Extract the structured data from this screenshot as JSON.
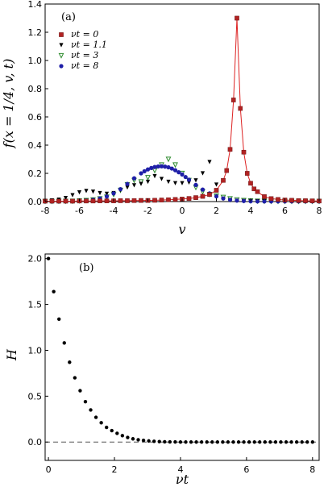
{
  "chart_data": [
    {
      "type": "scatter",
      "panel_label": "(a)",
      "xlabel": "v",
      "ylabel": "f(x = 1/4, v, t)",
      "xlim": [
        -8,
        8
      ],
      "ylim": [
        0,
        1.4
      ],
      "xticks": [
        "-8",
        "-6",
        "-4",
        "-2",
        "0",
        "2",
        "4",
        "6",
        "8"
      ],
      "yticks": [
        "0.0",
        "0.2",
        "0.4",
        "0.6",
        "0.8",
        "1.0",
        "1.2",
        "1.4"
      ],
      "legend_position": "top-left",
      "series": [
        {
          "name": "νt = 0",
          "marker": "square",
          "color": "#b22222",
          "line_color": "#dd2222",
          "x": [
            -8,
            -7.6,
            -7.2,
            -6.8,
            -6.4,
            -6,
            -5.6,
            -5.2,
            -4.8,
            -4.4,
            -4,
            -3.6,
            -3.2,
            -2.8,
            -2.4,
            -2,
            -1.6,
            -1.2,
            -0.8,
            -0.4,
            0,
            0.4,
            0.8,
            1.2,
            1.6,
            2,
            2.4,
            2.6,
            2.8,
            3,
            3.2,
            3.4,
            3.6,
            3.8,
            4,
            4.2,
            4.4,
            4.8,
            5.2,
            5.6,
            6,
            6.4,
            6.8,
            7.2,
            7.6,
            8
          ],
          "y": [
            0.003,
            0.003,
            0.003,
            0.003,
            0.003,
            0.004,
            0.004,
            0.004,
            0.005,
            0.005,
            0.005,
            0.006,
            0.006,
            0.007,
            0.008,
            0.008,
            0.009,
            0.011,
            0.013,
            0.015,
            0.018,
            0.022,
            0.028,
            0.037,
            0.05,
            0.08,
            0.15,
            0.22,
            0.37,
            0.72,
            1.3,
            0.66,
            0.35,
            0.2,
            0.13,
            0.09,
            0.07,
            0.035,
            0.021,
            0.015,
            0.011,
            0.009,
            0.007,
            0.006,
            0.005,
            0.004
          ]
        },
        {
          "name": "νt = 1.1",
          "marker": "triangle-down",
          "color": "#000000",
          "x": [
            -8,
            -7.6,
            -7.2,
            -6.8,
            -6.4,
            -6,
            -5.6,
            -5.2,
            -4.8,
            -4.4,
            -4,
            -3.6,
            -3.2,
            -2.8,
            -2.4,
            -2,
            -1.6,
            -1.2,
            -0.8,
            -0.4,
            0,
            0.4,
            0.8,
            1.2,
            1.6,
            2,
            2.4,
            2.8,
            3.2,
            3.6,
            4,
            4.4,
            4.8,
            5.2,
            5.6,
            6,
            6.4,
            6.8,
            7.2,
            7.6,
            8
          ],
          "y": [
            0.005,
            0.008,
            0.014,
            0.025,
            0.045,
            0.065,
            0.075,
            0.07,
            0.06,
            0.055,
            0.06,
            0.08,
            0.1,
            0.115,
            0.125,
            0.14,
            0.18,
            0.16,
            0.14,
            0.13,
            0.13,
            0.135,
            0.15,
            0.2,
            0.28,
            0.12,
            0.02,
            0.008,
            0.005,
            0.004,
            0.003,
            0.003,
            0.003,
            0.002,
            0.002,
            0.002,
            0.002,
            0.002,
            0.002,
            0.002,
            0.002
          ]
        },
        {
          "name": "νt = 3",
          "marker": "triangle-down-open",
          "color": "#2e8b2e",
          "x": [
            -8,
            -7.6,
            -7.2,
            -6.8,
            -6.4,
            -6,
            -5.6,
            -5.2,
            -4.8,
            -4.4,
            -4,
            -3.6,
            -3.2,
            -2.8,
            -2.4,
            -2,
            -1.6,
            -1.2,
            -0.8,
            -0.4,
            0,
            0.4,
            0.8,
            1.2,
            1.6,
            2,
            2.4,
            2.8,
            3.2,
            3.6,
            4,
            4.4,
            4.8,
            5.2,
            5.6,
            6,
            6.4,
            6.8,
            7.2,
            7.6,
            8
          ],
          "y": [
            0.001,
            0.001,
            0.002,
            0.002,
            0.003,
            0.005,
            0.008,
            0.012,
            0.02,
            0.032,
            0.05,
            0.08,
            0.12,
            0.15,
            0.14,
            0.17,
            0.22,
            0.26,
            0.3,
            0.26,
            0.2,
            0.15,
            0.1,
            0.07,
            0.05,
            0.04,
            0.03,
            0.02,
            0.012,
            0.008,
            0.005,
            0.003,
            0.002,
            0.001,
            0.001,
            0.001,
            0.001,
            0.001,
            0.001,
            0.001,
            0.001
          ]
        },
        {
          "name": "νt = 8",
          "marker": "circle",
          "color": "#1f1fa8",
          "x": [
            -8,
            -7.6,
            -7.2,
            -6.8,
            -6.4,
            -6,
            -5.6,
            -5.2,
            -4.8,
            -4.4,
            -4,
            -3.6,
            -3.2,
            -2.8,
            -2.4,
            -2.2,
            -2,
            -1.8,
            -1.6,
            -1.4,
            -1.2,
            -1,
            -0.8,
            -0.6,
            -0.4,
            -0.2,
            0,
            0.2,
            0.4,
            0.8,
            1.2,
            1.6,
            2,
            2.4,
            2.8,
            3.2,
            3.6,
            4,
            4.4,
            4.8,
            5.2,
            5.6,
            6,
            6.4,
            6.8,
            7.2,
            7.6,
            8
          ],
          "y": [
            0.001,
            0.001,
            0.001,
            0.002,
            0.003,
            0.005,
            0.008,
            0.013,
            0.022,
            0.036,
            0.058,
            0.088,
            0.125,
            0.165,
            0.2,
            0.215,
            0.228,
            0.238,
            0.245,
            0.249,
            0.25,
            0.248,
            0.243,
            0.234,
            0.222,
            0.208,
            0.192,
            0.174,
            0.155,
            0.118,
            0.085,
            0.058,
            0.037,
            0.022,
            0.013,
            0.007,
            0.004,
            0.002,
            0.001,
            0.001,
            0.001,
            0.001,
            0.001,
            0.001,
            0.001,
            0.001,
            0.001,
            0.001
          ]
        }
      ]
    },
    {
      "type": "scatter",
      "panel_label": "(b)",
      "xlabel": "νt",
      "ylabel": "H",
      "xlim": [
        -0.1,
        8.2
      ],
      "ylim": [
        -0.2,
        2.05
      ],
      "xticks": [
        "0",
        "2",
        "4",
        "6",
        "8"
      ],
      "yticks": [
        "0.0",
        "0.5",
        "1.0",
        "1.5",
        "2.0"
      ],
      "reference_line": 0,
      "series": [
        {
          "name": "",
          "marker": "circle",
          "color": "#000000",
          "x": [
            0,
            0.16,
            0.32,
            0.48,
            0.64,
            0.8,
            0.96,
            1.12,
            1.28,
            1.44,
            1.6,
            1.76,
            1.92,
            2.08,
            2.24,
            2.4,
            2.56,
            2.72,
            2.88,
            3.04,
            3.2,
            3.36,
            3.52,
            3.68,
            3.84,
            4,
            4.16,
            4.32,
            4.48,
            4.64,
            4.8,
            4.96,
            5.12,
            5.28,
            5.44,
            5.6,
            5.76,
            5.92,
            6.08,
            6.24,
            6.4,
            6.56,
            6.72,
            6.88,
            7.04,
            7.2,
            7.36,
            7.52,
            7.68,
            7.84,
            8
          ],
          "y": [
            2.0,
            1.64,
            1.34,
            1.08,
            0.87,
            0.7,
            0.56,
            0.44,
            0.35,
            0.27,
            0.21,
            0.16,
            0.125,
            0.095,
            0.07,
            0.05,
            0.035,
            0.025,
            0.018,
            0.012,
            0.008,
            0.005,
            0.003,
            0.002,
            0.001,
            0,
            0,
            0,
            0,
            0,
            0,
            0,
            0,
            0,
            0,
            0,
            0,
            0,
            0,
            0,
            0,
            0,
            0,
            0,
            0,
            0,
            0,
            0,
            0,
            0,
            0
          ]
        }
      ]
    }
  ]
}
